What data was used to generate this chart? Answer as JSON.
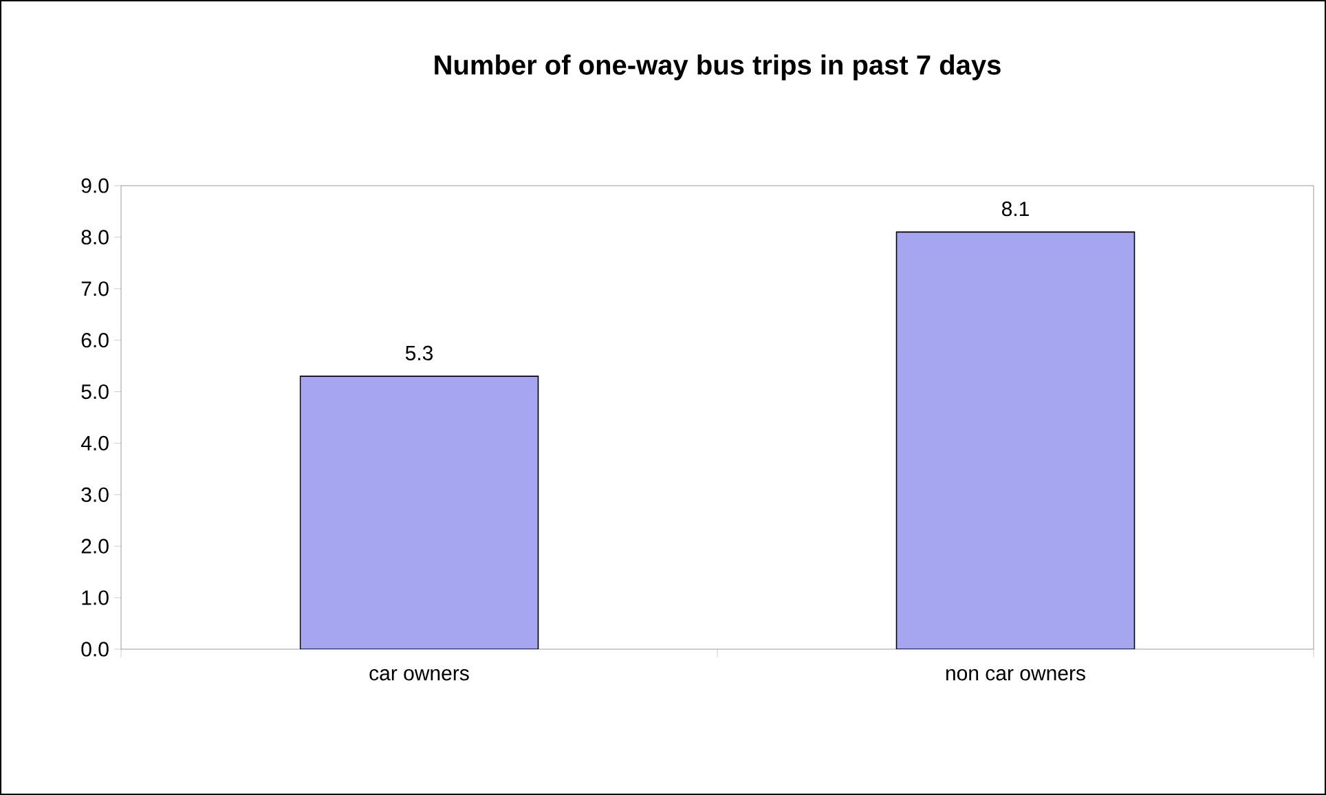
{
  "chart_data": {
    "type": "bar",
    "title": "Number of one-way bus trips in past 7 days",
    "categories": [
      "car owners",
      "non car owners"
    ],
    "values": [
      5.3,
      8.1
    ],
    "color": "#a6a6f0",
    "ylim": [
      0,
      9
    ],
    "yticks": [
      {
        "value": 0,
        "label": "0.0"
      },
      {
        "value": 1,
        "label": "1.0"
      },
      {
        "value": 2,
        "label": "2.0"
      },
      {
        "value": 3,
        "label": "3.0"
      },
      {
        "value": 4,
        "label": "4.0"
      },
      {
        "value": 5,
        "label": "5.0"
      },
      {
        "value": 6,
        "label": "6.0"
      },
      {
        "value": 7,
        "label": "7.0"
      },
      {
        "value": 8,
        "label": "8.0"
      },
      {
        "value": 9,
        "label": "9.0"
      }
    ],
    "data_labels": true,
    "grid": false
  }
}
